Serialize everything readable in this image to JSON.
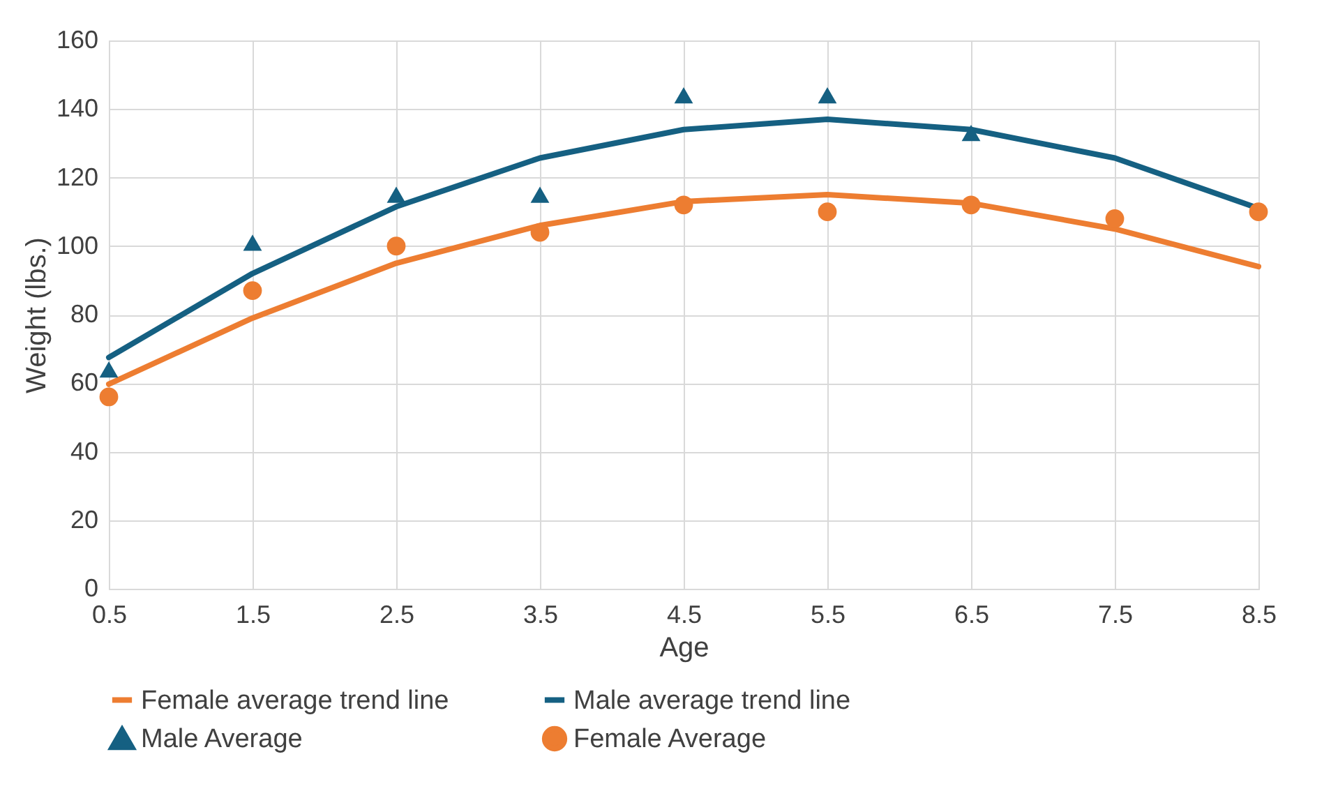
{
  "chart_data": {
    "type": "line",
    "xlabel": "Age",
    "ylabel": "Weight (lbs.)",
    "x": [
      0.5,
      1.5,
      2.5,
      3.5,
      4.5,
      5.5,
      6.5,
      7.5,
      8.5
    ],
    "xlim": [
      0.5,
      8.5
    ],
    "xticks": [
      0.5,
      1.5,
      2.5,
      3.5,
      4.5,
      5.5,
      6.5,
      7.5,
      8.5
    ],
    "ylim": [
      0,
      160
    ],
    "yticks": [
      0,
      20,
      40,
      60,
      80,
      100,
      120,
      140,
      160
    ],
    "grid": true,
    "legend": "bottom",
    "series": [
      {
        "name": "Female average trend line",
        "color": "#ed7d31",
        "values": [
          59.7,
          79,
          95,
          106,
          113,
          115,
          112.5,
          105,
          94
        ]
      },
      {
        "name": "Male average trend line",
        "color": "#156082",
        "values": [
          67.5,
          92,
          111.5,
          125.7,
          134,
          137,
          134,
          125.7,
          111
        ]
      },
      {
        "name": "Male Average",
        "type": "scatter",
        "marker": "triangle",
        "color": "#156082",
        "values": [
          64,
          101,
          115,
          115,
          144,
          144,
          133,
          null,
          null
        ]
      },
      {
        "name": "Female Average",
        "type": "scatter",
        "marker": "circle",
        "color": "#ed7d31",
        "values": [
          56,
          87,
          100,
          104,
          112,
          110,
          112,
          108,
          110
        ]
      }
    ]
  }
}
